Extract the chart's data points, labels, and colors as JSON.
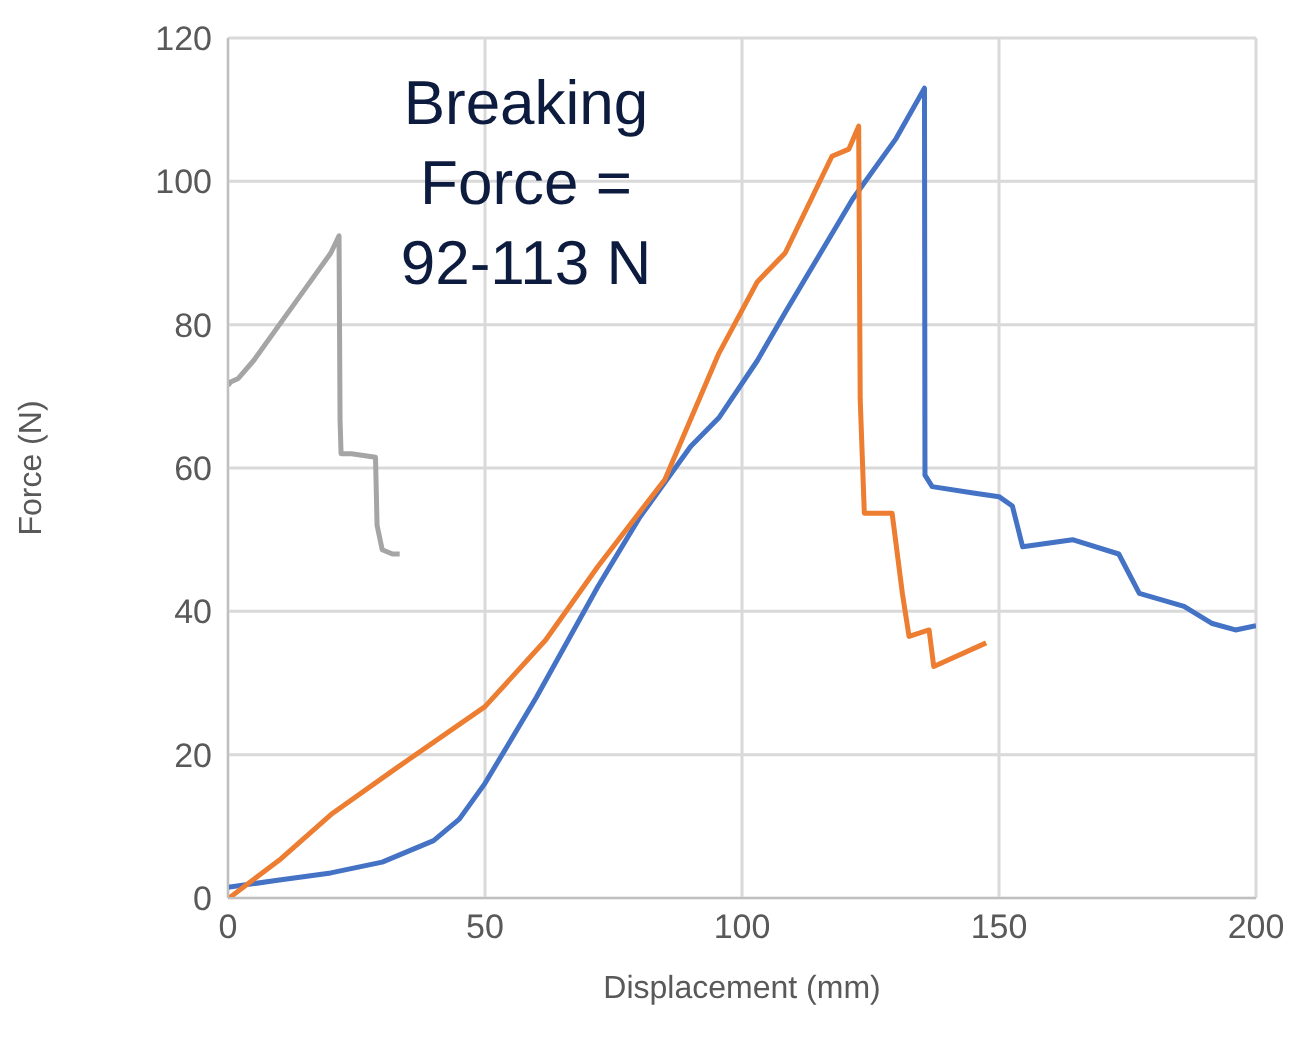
{
  "chart_data": {
    "type": "line",
    "xlabel": "Displacement (mm)",
    "ylabel": "Force (N)",
    "annotations": [
      "Breaking Force = 92-113 N"
    ],
    "xlim": [
      0,
      200
    ],
    "xticks": [
      0,
      50,
      100,
      150,
      200
    ],
    "ylim": [
      0,
      120
    ],
    "yticks": [
      0,
      20,
      40,
      60,
      80,
      100,
      120
    ],
    "grid": true,
    "marker": "none",
    "line_style": "solid",
    "series": [
      {
        "color": "#a5a5a5",
        "x": [
          0,
          0.5,
          2,
          5,
          10,
          15,
          20,
          21.6,
          21.8,
          22,
          24,
          28.7,
          29,
          30,
          32,
          33.4
        ],
        "values": [
          71.5,
          72,
          72.5,
          75,
          80,
          85,
          90,
          92.4,
          66.7,
          62,
          62,
          61.5,
          52,
          48.6,
          48,
          48
        ]
      },
      {
        "color": "#4472c4",
        "x": [
          0,
          10,
          20,
          30,
          40,
          45,
          50,
          60,
          72,
          80,
          90,
          95.5,
          103,
          108.4,
          121.5,
          130,
          135.5,
          135.6,
          137,
          145,
          150,
          152.6,
          154.6,
          164.3,
          173.3,
          177.3,
          186,
          191.5,
          196,
          200
        ],
        "values": [
          1.5,
          2.5,
          3.5,
          5,
          8,
          11,
          16,
          28,
          43.5,
          53,
          63,
          67,
          75,
          81.7,
          97.5,
          106,
          113,
          59,
          57.4,
          56.5,
          56,
          54.7,
          49,
          50,
          48,
          42.5,
          40.7,
          38.3,
          37.4,
          38
        ]
      },
      {
        "color": "#ed7d31",
        "x": [
          0.2,
          10,
          20.3,
          33.3,
          50,
          61.8,
          72,
          85,
          95.5,
          103,
          108.4,
          117.5,
          120.8,
          122.7,
          123,
          123.8,
          129.2,
          131.2,
          132.5,
          136.4,
          137.3,
          147.5
        ],
        "values": [
          0,
          5.3,
          11.8,
          18.4,
          26.7,
          36,
          46.3,
          58.4,
          76,
          86,
          90,
          103.5,
          104.5,
          107.7,
          69.5,
          53.7,
          53.7,
          42.5,
          36.5,
          37.4,
          32.3,
          35.6
        ]
      }
    ]
  }
}
